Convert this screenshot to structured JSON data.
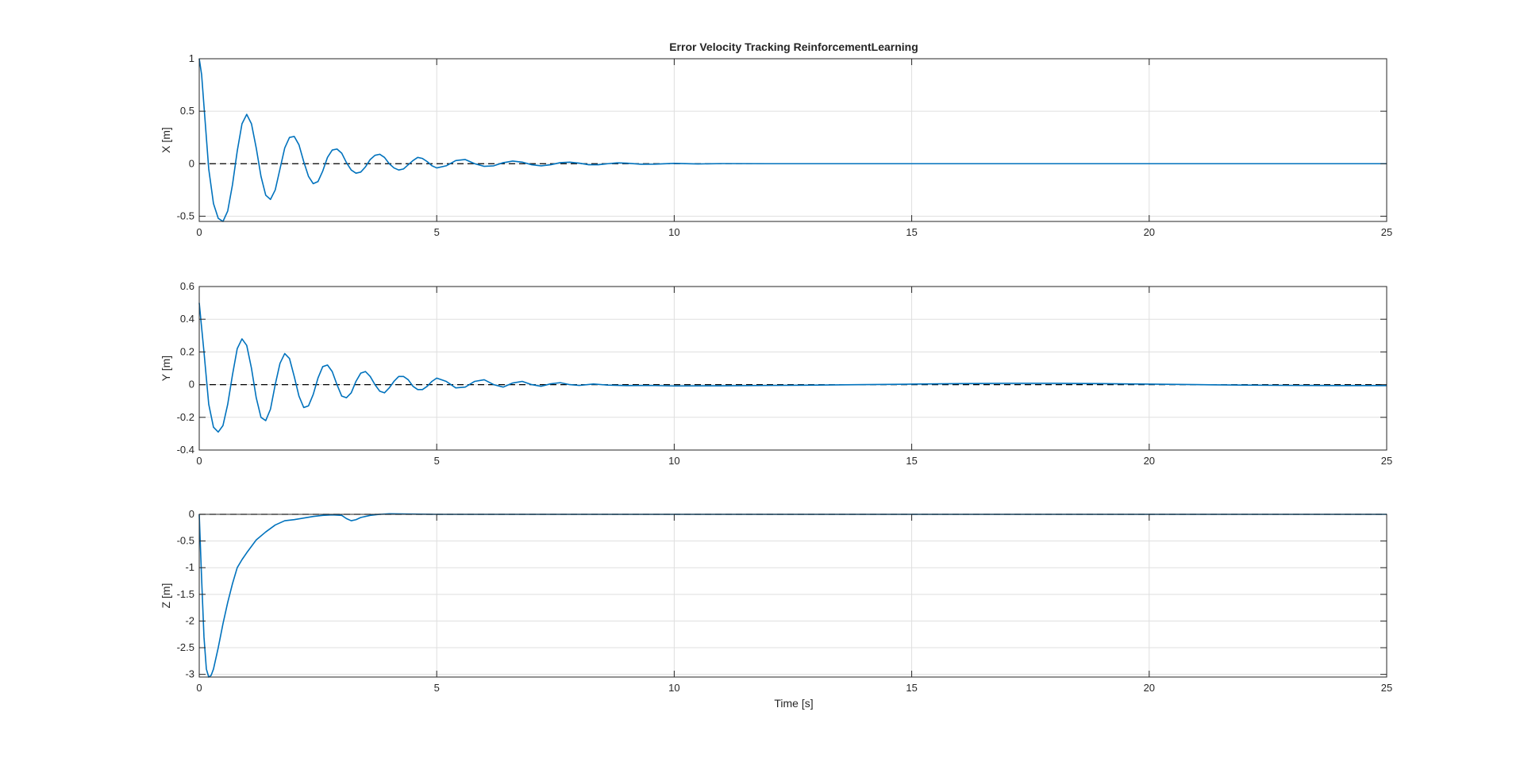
{
  "figure": {
    "title": "Error Velocity Tracking ReinforcementLearning",
    "xlabel": "Time [s]"
  },
  "colors": {
    "series": "#0072BD",
    "reference": "#000000",
    "grid": "#DFDFDF",
    "axes": "#262626"
  },
  "chart_data": [
    {
      "type": "line",
      "title": "Error Velocity Tracking ReinforcementLearning",
      "xlabel": "",
      "ylabel": "X [m]",
      "xlim": [
        0,
        25
      ],
      "ylim": [
        -0.55,
        1
      ],
      "xticks": [
        0,
        5,
        10,
        15,
        20,
        25
      ],
      "yticks": [
        -0.5,
        0,
        0.5,
        1
      ],
      "ytick_labels": [
        "-0.5",
        "0",
        "0.5",
        "1"
      ],
      "xtick_labels": [
        "0",
        "5",
        "10",
        "15",
        "20",
        "25"
      ],
      "grid": true,
      "series": [
        {
          "x": [
            0,
            0.05,
            0.1,
            0.2,
            0.3,
            0.4,
            0.5,
            0.6,
            0.7,
            0.8,
            0.9,
            1.0,
            1.1,
            1.2,
            1.3,
            1.4,
            1.5,
            1.6,
            1.7,
            1.8,
            1.9,
            2.0,
            2.1,
            2.2,
            2.3,
            2.4,
            2.5,
            2.6,
            2.7,
            2.8,
            2.9,
            3.0,
            3.1,
            3.2,
            3.3,
            3.4,
            3.5,
            3.6,
            3.7,
            3.8,
            3.9,
            4.0,
            4.1,
            4.2,
            4.3,
            4.4,
            4.5,
            4.6,
            4.7,
            4.8,
            4.9,
            5.0,
            5.2,
            5.4,
            5.6,
            5.8,
            6.0,
            6.2,
            6.4,
            6.6,
            6.8,
            7.0,
            7.2,
            7.4,
            7.6,
            7.8,
            8.0,
            8.2,
            8.4,
            8.6,
            8.8,
            9.0,
            9.3,
            9.6,
            10.0,
            10.5,
            11.0,
            12.0,
            13.0,
            15.0,
            18.0,
            21.0,
            25.0
          ],
          "y": [
            1.0,
            0.85,
            0.55,
            -0.05,
            -0.38,
            -0.52,
            -0.55,
            -0.45,
            -0.2,
            0.12,
            0.38,
            0.47,
            0.38,
            0.15,
            -0.12,
            -0.3,
            -0.34,
            -0.25,
            -0.05,
            0.15,
            0.25,
            0.26,
            0.18,
            0.02,
            -0.12,
            -0.19,
            -0.17,
            -0.07,
            0.06,
            0.13,
            0.14,
            0.1,
            0.01,
            -0.06,
            -0.09,
            -0.08,
            -0.03,
            0.04,
            0.08,
            0.09,
            0.06,
            0.0,
            -0.04,
            -0.06,
            -0.05,
            -0.01,
            0.03,
            0.06,
            0.05,
            0.02,
            -0.02,
            -0.04,
            -0.02,
            0.03,
            0.04,
            0.0,
            -0.025,
            -0.02,
            0.01,
            0.025,
            0.015,
            -0.01,
            -0.02,
            -0.01,
            0.01,
            0.015,
            0.005,
            -0.01,
            -0.01,
            0.0,
            0.008,
            0.005,
            -0.005,
            -0.004,
            0.003,
            -0.002,
            0.001,
            0.0,
            0.0,
            0.0,
            0.0,
            0.0,
            0.0
          ]
        }
      ],
      "reference": 0
    },
    {
      "type": "line",
      "xlabel": "",
      "ylabel": "Y [m]",
      "xlim": [
        0,
        25
      ],
      "ylim": [
        -0.4,
        0.6
      ],
      "xticks": [
        0,
        5,
        10,
        15,
        20,
        25
      ],
      "yticks": [
        -0.4,
        -0.2,
        0,
        0.2,
        0.4,
        0.6
      ],
      "ytick_labels": [
        "-0.4",
        "-0.2",
        "0",
        "0.2",
        "0.4",
        "0.6"
      ],
      "xtick_labels": [
        "0",
        "5",
        "10",
        "15",
        "20",
        "25"
      ],
      "grid": true,
      "series": [
        {
          "x": [
            0,
            0.1,
            0.2,
            0.3,
            0.4,
            0.5,
            0.6,
            0.7,
            0.8,
            0.9,
            1.0,
            1.1,
            1.2,
            1.3,
            1.4,
            1.5,
            1.6,
            1.7,
            1.8,
            1.9,
            2.0,
            2.1,
            2.2,
            2.3,
            2.4,
            2.5,
            2.6,
            2.7,
            2.8,
            2.9,
            3.0,
            3.1,
            3.2,
            3.3,
            3.4,
            3.5,
            3.6,
            3.7,
            3.8,
            3.9,
            4.0,
            4.1,
            4.2,
            4.3,
            4.4,
            4.5,
            4.6,
            4.7,
            4.8,
            4.9,
            5.0,
            5.2,
            5.4,
            5.6,
            5.8,
            6.0,
            6.2,
            6.4,
            6.6,
            6.8,
            7.0,
            7.2,
            7.4,
            7.6,
            7.8,
            8.0,
            8.3,
            8.6,
            9.0,
            9.5,
            10.0,
            11.0,
            12.0,
            13.0,
            14.0,
            15.0,
            16.0,
            17.0,
            18.0,
            19.0,
            20.0,
            21.0,
            22.0,
            23.0,
            24.0,
            25.0
          ],
          "y": [
            0.5,
            0.2,
            -0.12,
            -0.26,
            -0.29,
            -0.25,
            -0.12,
            0.06,
            0.22,
            0.28,
            0.24,
            0.1,
            -0.08,
            -0.2,
            -0.22,
            -0.15,
            0.0,
            0.13,
            0.19,
            0.16,
            0.05,
            -0.07,
            -0.14,
            -0.13,
            -0.06,
            0.04,
            0.11,
            0.12,
            0.08,
            0.0,
            -0.07,
            -0.08,
            -0.05,
            0.02,
            0.07,
            0.08,
            0.05,
            0.0,
            -0.04,
            -0.05,
            -0.02,
            0.02,
            0.05,
            0.05,
            0.03,
            -0.01,
            -0.03,
            -0.03,
            -0.01,
            0.02,
            0.04,
            0.02,
            -0.02,
            -0.015,
            0.02,
            0.03,
            0.0,
            -0.015,
            0.01,
            0.02,
            0.0,
            -0.01,
            0.005,
            0.012,
            0.0,
            -0.005,
            0.004,
            -0.003,
            -0.006,
            -0.005,
            -0.008,
            -0.007,
            -0.005,
            -0.003,
            0.0,
            0.003,
            0.006,
            0.008,
            0.008,
            0.006,
            0.003,
            0.0,
            -0.003,
            -0.005,
            -0.006,
            -0.006
          ],
          "name": ""
        }
      ],
      "reference": 0
    },
    {
      "type": "line",
      "xlabel": "Time [s]",
      "ylabel": "Z [m]",
      "xlim": [
        0,
        25
      ],
      "ylim": [
        -3.05,
        0
      ],
      "xticks": [
        0,
        5,
        10,
        15,
        20,
        25
      ],
      "yticks": [
        -3,
        -2.5,
        -2,
        -1.5,
        -1,
        -0.5,
        0
      ],
      "ytick_labels": [
        "-3",
        "-2.5",
        "-2",
        "-1.5",
        "-1",
        "-0.5",
        "0"
      ],
      "xtick_labels": [
        "0",
        "5",
        "10",
        "15",
        "20",
        "25"
      ],
      "grid": true,
      "series": [
        {
          "x": [
            0,
            0.05,
            0.1,
            0.15,
            0.2,
            0.25,
            0.3,
            0.4,
            0.5,
            0.6,
            0.7,
            0.8,
            0.9,
            1.0,
            1.2,
            1.4,
            1.6,
            1.8,
            2.0,
            2.2,
            2.4,
            2.6,
            2.8,
            3.0,
            3.1,
            3.2,
            3.3,
            3.4,
            3.6,
            3.8,
            4.0,
            4.5,
            5.0,
            6.0,
            8.0,
            10.0,
            15.0,
            20.0,
            25.0
          ],
          "y": [
            0.0,
            -1.2,
            -2.3,
            -2.9,
            -3.05,
            -3.02,
            -2.9,
            -2.5,
            -2.05,
            -1.65,
            -1.3,
            -1.0,
            -0.85,
            -0.72,
            -0.48,
            -0.33,
            -0.2,
            -0.12,
            -0.1,
            -0.07,
            -0.04,
            -0.02,
            -0.01,
            -0.02,
            -0.08,
            -0.12,
            -0.1,
            -0.06,
            -0.02,
            0.0,
            0.01,
            0.005,
            0.0,
            0.0,
            0.0,
            0.0,
            0.0,
            0.0,
            0.0
          ],
          "name": ""
        }
      ],
      "reference": 0
    }
  ]
}
